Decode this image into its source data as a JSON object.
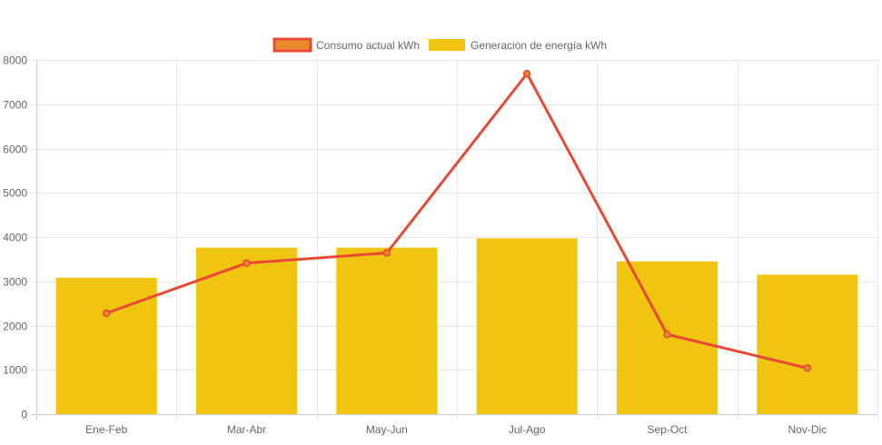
{
  "chart_data": {
    "type": "bar+line",
    "categories": [
      "Ene-Feb",
      "Mar-Abr",
      "May-Jun",
      "Jul-Ago",
      "Sep-Oct",
      "Nov-Dic"
    ],
    "series": [
      {
        "name": "Consumo actual kWh",
        "kind": "line",
        "color": "#e64a35",
        "fill": "#e68a2e",
        "values": [
          2280,
          3410,
          3640,
          7690,
          1800,
          1040
        ]
      },
      {
        "name": "Generación de energía kWh",
        "kind": "bar",
        "color": "#f1c40f",
        "values": [
          3080,
          3760,
          3760,
          3970,
          3450,
          3150
        ]
      }
    ],
    "ylim": [
      0,
      8000
    ],
    "yticks": [
      0,
      1000,
      2000,
      3000,
      4000,
      5000,
      6000,
      7000,
      8000
    ],
    "ytick_labels": [
      "0",
      "1000",
      "2000",
      "3000",
      "4000",
      "5000",
      "6000",
      "7000",
      "8000"
    ],
    "legend_position": "top-center",
    "grid": true,
    "title": "",
    "xlabel": "",
    "ylabel": ""
  }
}
